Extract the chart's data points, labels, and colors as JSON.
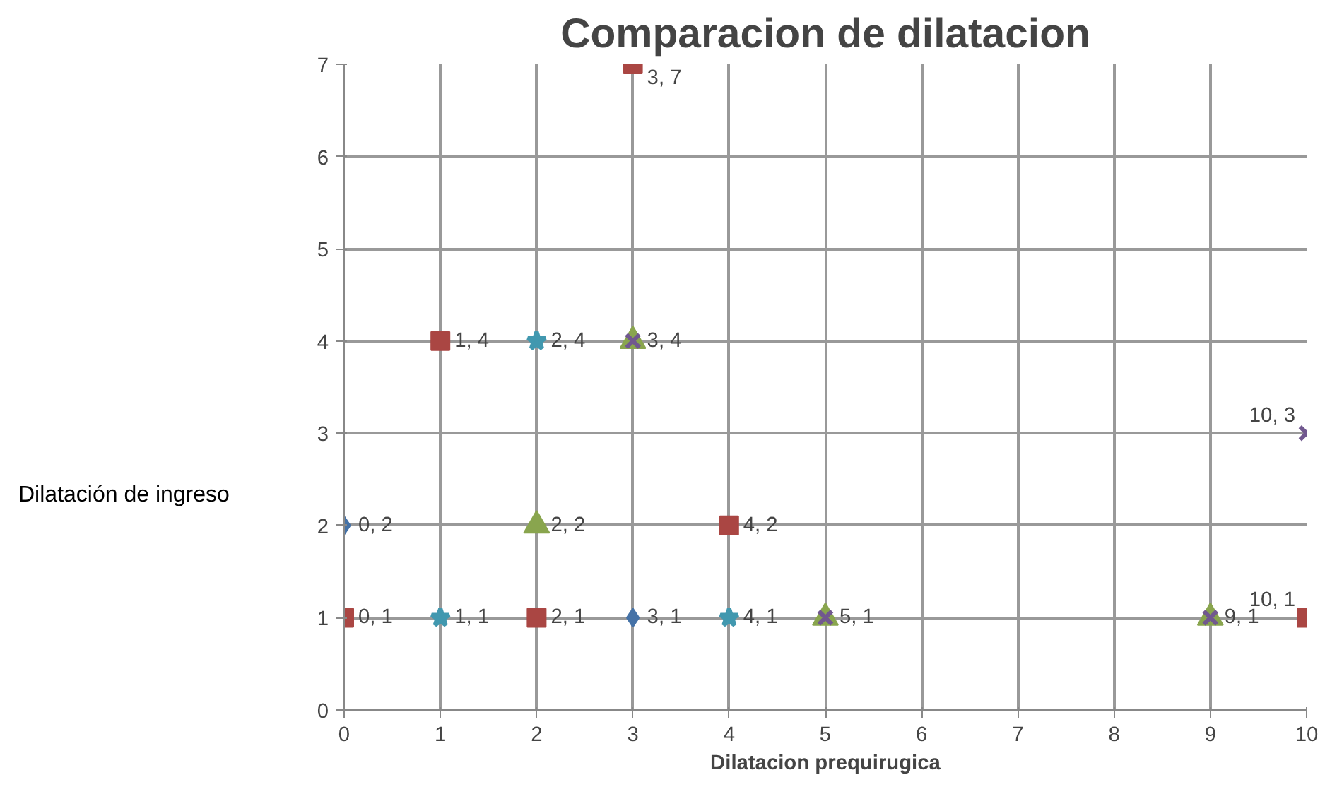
{
  "chart_data": {
    "type": "scatter",
    "title": "Comparacion de dilatacion",
    "xlabel": "Dilatacion prequirugica",
    "ylabel": "Dilatación de ingreso",
    "xlim": [
      0,
      10
    ],
    "ylim": [
      0,
      7
    ],
    "xticks": [
      0,
      1,
      2,
      3,
      4,
      5,
      6,
      7,
      8,
      9,
      10
    ],
    "yticks": [
      0,
      1,
      2,
      3,
      4,
      5,
      6,
      7
    ],
    "grid": true,
    "series": [
      {
        "color": "#4572a7",
        "marker": "diamond",
        "x": [
          0,
          3
        ],
        "values": [
          2,
          1
        ],
        "value_labels": [
          "0, 2",
          "3, 1"
        ]
      },
      {
        "color": "#aa4643",
        "marker": "square",
        "x": [
          0,
          1,
          2,
          3,
          4,
          10
        ],
        "values": [
          1,
          4,
          1,
          7,
          2,
          1
        ],
        "value_labels": [
          "0, 1",
          "1, 4",
          "2, 1",
          "3, 7",
          "4, 2",
          "10, 1"
        ]
      },
      {
        "color": "#89a54e",
        "marker": "triangle",
        "x": [
          2,
          3,
          5,
          9
        ],
        "values": [
          2,
          4,
          1,
          1
        ],
        "value_labels": [
          "2, 2",
          null,
          null,
          null
        ]
      },
      {
        "color": "#71588f",
        "marker": "cross",
        "x": [
          3,
          5,
          9,
          10
        ],
        "values": [
          4,
          1,
          1,
          3
        ],
        "value_labels": [
          "3, 4",
          "5, 1",
          "9, 1",
          "10, 3"
        ]
      },
      {
        "color": "#4198af",
        "marker": "star",
        "x": [
          1,
          2,
          4
        ],
        "values": [
          1,
          4,
          1
        ],
        "value_labels": [
          "1, 1",
          "2, 4",
          "4, 1"
        ]
      }
    ]
  }
}
